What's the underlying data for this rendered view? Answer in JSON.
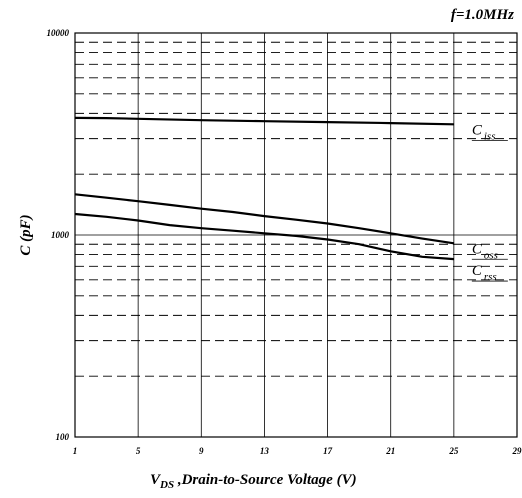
{
  "chart_data": {
    "type": "line",
    "annotation": "f=1.0MHz",
    "xlabel_symbol": "V",
    "xlabel_subscript": "DS",
    "xlabel_text": " ,Drain-to-Source Voltage (V)",
    "ylabel": "C (pF)",
    "x_ticks": [
      1,
      5,
      9,
      13,
      17,
      21,
      25,
      29
    ],
    "y_ticks": [
      100,
      1000,
      10000
    ],
    "xlim": [
      1,
      29
    ],
    "ylim": [
      100,
      10000
    ],
    "y_scale": "log",
    "grid": true,
    "series": [
      {
        "name": "C",
        "subscript": "iss",
        "x": [
          1,
          3,
          5,
          9,
          13,
          17,
          21,
          25
        ],
        "y": [
          3800,
          3790,
          3760,
          3700,
          3660,
          3620,
          3580,
          3530
        ]
      },
      {
        "name": "C",
        "subscript": "oss",
        "x": [
          1,
          3,
          5,
          7,
          9,
          11,
          13,
          15,
          17,
          19,
          21,
          23,
          25
        ],
        "y": [
          1590,
          1530,
          1470,
          1410,
          1350,
          1300,
          1240,
          1190,
          1140,
          1080,
          1020,
          960,
          910
        ]
      },
      {
        "name": "C",
        "subscript": "rss",
        "x": [
          1,
          3,
          5,
          7,
          9,
          11,
          13,
          15,
          17,
          19,
          21,
          23,
          25
        ],
        "y": [
          1270,
          1230,
          1180,
          1120,
          1080,
          1050,
          1020,
          990,
          950,
          900,
          830,
          780,
          760
        ]
      }
    ]
  }
}
